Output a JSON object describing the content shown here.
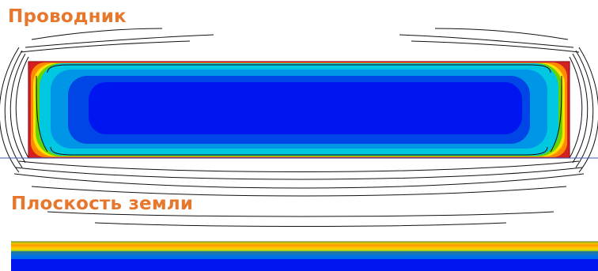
{
  "labels": {
    "conductor": "Проводник",
    "ground_plane": "Плоскость земли"
  },
  "colors": {
    "label": "#e8772e",
    "field_line": "#111111",
    "boundary": "#3b57c4",
    "high_density": "#d42020",
    "mid_high": "#ff8a00",
    "mid": "#ffe000",
    "mid_low": "#66d400",
    "low_high": "#00c8e0",
    "low_mid": "#0096e8",
    "low": "#0046e6",
    "lowest": "#0016f0"
  }
}
